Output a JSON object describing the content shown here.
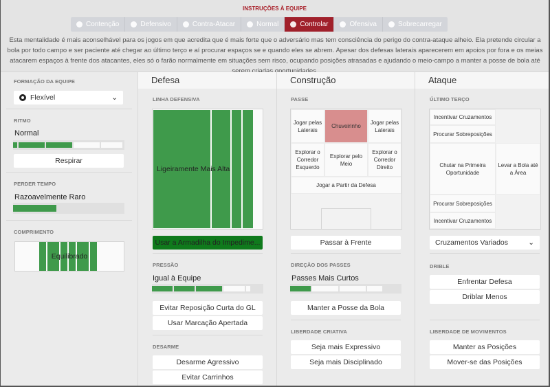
{
  "header": {
    "title": "INSTRUÇÕES À EQUIPE",
    "tabs": [
      {
        "label": "Contenção",
        "icon": "heart-shield-icon"
      },
      {
        "label": "Defensivo",
        "icon": "shield-icon"
      },
      {
        "label": "Contra-Atacar",
        "icon": "counter-icon"
      },
      {
        "label": "Normal",
        "icon": "target-icon"
      },
      {
        "label": "Controlar",
        "icon": "control-icon",
        "active": true
      },
      {
        "label": "Ofensiva",
        "icon": "arrow-icon"
      },
      {
        "label": "Sobrecarregar",
        "icon": "overload-icon"
      }
    ],
    "description": "Esta mentalidade é mais aconselhável para os jogos em que acredita que é mais forte que o adversário mas tem consciência do perigo do contra-ataque alheio. Ela pretende circular a bola por todo campo e ser paciente até chegar ao último terço e aí procurar espaços se e quando eles se abrem. Apesar dos defesas laterais aparecerem em apoios por fora e os meias atacarem espaços à frente dos atacantes, eles só o farão normalmente em situações sem risco, ocupando posições atrasadas e ajudando o meio-campo a manter a posse de bola até serem criadas oportunidades."
  },
  "left": {
    "formation_label": "FORMAÇÃO DA EQUIPE",
    "formation_value": "Flexível",
    "tempo_label": "RITMO",
    "tempo_value": "Normal",
    "tempo_level": "3 of 5",
    "respirar": "Respirar",
    "timewaste_label": "PERDER TEMPO",
    "timewaste_value": "Razoavelmente Raro",
    "timewaste_level": 0.35,
    "width_label": "COMPRIMENTO",
    "width_value": "Equilibrado"
  },
  "defesa": {
    "title": "Defesa",
    "line_label": "LINHA DEFENSIVA",
    "line_value": "Ligeiramente Mais Alta",
    "offside": "Usar a Armadilha do Impedime...",
    "press_label": "PRESSÃO",
    "press_value": "Igual à Equipe",
    "press_level": "3 of 5",
    "press_buttons": [
      "Evitar Reposição Curta do GL",
      "Usar Marcação Apertada"
    ],
    "tackle_label": "DESARME",
    "tackle_buttons": [
      "Desarme Agressivo",
      "Evitar Carrinhos"
    ]
  },
  "construcao": {
    "title": "Construção",
    "pass_label": "PASSE",
    "cells": {
      "wide_left": "Jogar pelas Laterais",
      "direct": "Chuveirinho",
      "wide_right": "Jogar pelas Laterais",
      "left_flank": "Explorar o Corredor Esquerdo",
      "middle": "Explorar pelo Meio",
      "right_flank": "Explorar o Corredor Direito",
      "back": "Jogar a Partir da Defesa"
    },
    "pass_forward": "Passar à Frente",
    "dir_label": "DIREÇÃO DOS PASSES",
    "dir_value": "Passes Mais Curtos",
    "dir_level": "1 of 5",
    "possession": "Manter a Posse da Bola",
    "creative_label": "LIBERDADE CRIATIVA",
    "creative_buttons": [
      "Seja mais Expressivo",
      "Seja mais Disciplinado"
    ]
  },
  "ataque": {
    "title": "Ataque",
    "third_label": "ÚLTIMO TERÇO",
    "cells": [
      "Incentivar Cruzamentos",
      "Procurar Sobreposições",
      "Chutar na Primeira Oportunidade",
      "Procurar Sobreposições",
      "Incentivar Cruzamentos"
    ],
    "work_box": "Levar a Bola até a Área",
    "cross_value": "Cruzamentos Variados",
    "dribble_label": "DRIBLE",
    "dribble_buttons": [
      "Enfrentar Defesa",
      "Driblar Menos"
    ],
    "movement_label": "LIBERDADE DE MOVIMENTOS",
    "movement_buttons": [
      "Manter as Posições",
      "Mover-se das Posições"
    ]
  },
  "colors": {
    "accent": "#a0202b",
    "green": "#3f9a4b",
    "dark_green": "#0f7a1c",
    "red_cell": "#d88e8e"
  }
}
